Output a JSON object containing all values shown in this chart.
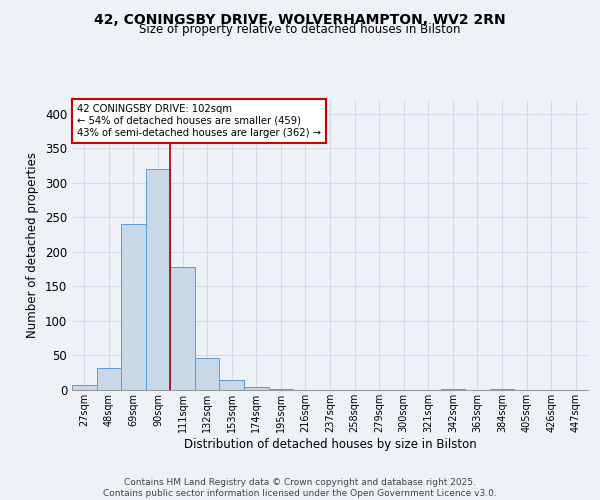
{
  "title_line1": "42, CONINGSBY DRIVE, WOLVERHAMPTON, WV2 2RN",
  "title_line2": "Size of property relative to detached houses in Bilston",
  "xlabel": "Distribution of detached houses by size in Bilston",
  "ylabel": "Number of detached properties",
  "bin_labels": [
    "27sqm",
    "48sqm",
    "69sqm",
    "90sqm",
    "111sqm",
    "132sqm",
    "153sqm",
    "174sqm",
    "195sqm",
    "216sqm",
    "237sqm",
    "258sqm",
    "279sqm",
    "300sqm",
    "321sqm",
    "342sqm",
    "363sqm",
    "384sqm",
    "405sqm",
    "426sqm",
    "447sqm"
  ],
  "bin_values": [
    7,
    32,
    240,
    320,
    178,
    46,
    15,
    4,
    2,
    0,
    0,
    0,
    0,
    0,
    0,
    2,
    0,
    2,
    0,
    0,
    0
  ],
  "bar_color": "#c8d8e8",
  "bar_edge_color": "#5b9bd5",
  "grid_color": "#d0dce8",
  "vline_x": 3.5,
  "vline_color": "#aa0000",
  "annotation_text": "42 CONINGSBY DRIVE: 102sqm\n← 54% of detached houses are smaller (459)\n43% of semi-detached houses are larger (362) →",
  "annotation_box_facecolor": "#ffffff",
  "annotation_box_edgecolor": "#cc0000",
  "ylim": [
    0,
    420
  ],
  "yticks": [
    0,
    50,
    100,
    150,
    200,
    250,
    300,
    350,
    400
  ],
  "footer_line1": "Contains HM Land Registry data © Crown copyright and database right 2025.",
  "footer_line2": "Contains public sector information licensed under the Open Government Licence v3.0.",
  "background_color": "#eef2f7",
  "figwidth": 6.0,
  "figheight": 5.0,
  "dpi": 100
}
